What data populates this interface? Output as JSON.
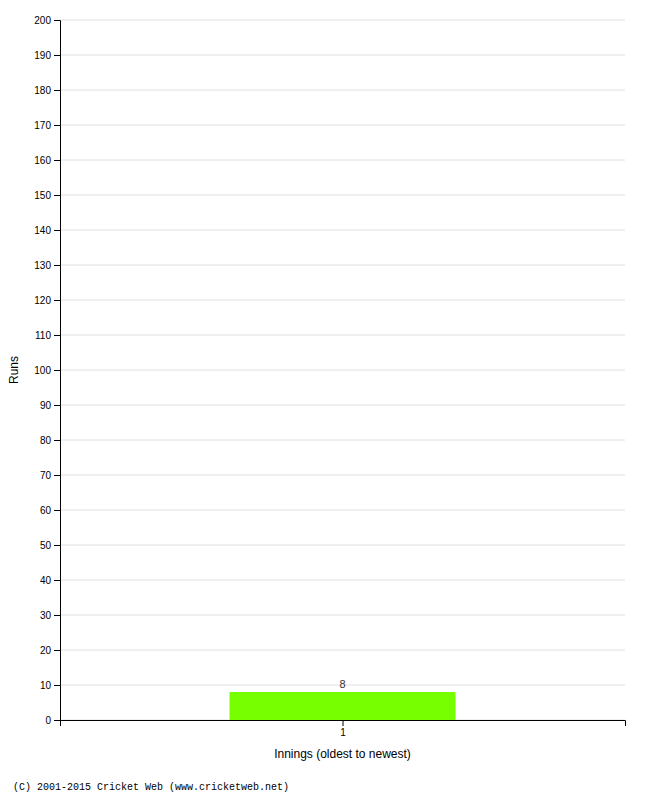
{
  "chart_data": {
    "type": "bar",
    "x_label": "Innings (oldest to newest)",
    "y_label": "Runs",
    "x": [
      1
    ],
    "values": [
      8
    ],
    "color": "#77ff00",
    "xlim": [
      0,
      2
    ],
    "xticks": [
      1
    ],
    "ylim": [
      0,
      200
    ],
    "yticks": [
      0,
      10,
      20,
      30,
      40,
      50,
      60,
      70,
      80,
      90,
      100,
      110,
      120,
      130,
      140,
      150,
      160,
      170,
      180,
      190,
      200
    ],
    "grid": true,
    "data_labels": true,
    "annotations": [
      "(C) 2001-2015 Cricket Web (www.cricketweb.net)"
    ]
  }
}
